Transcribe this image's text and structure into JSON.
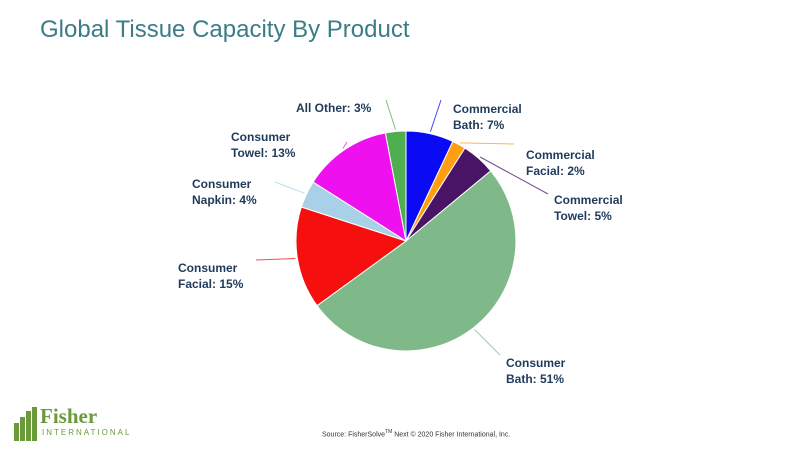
{
  "page": {
    "title": "Global Tissue Capacity By Product",
    "source_prefix": "Source: FisherSolve",
    "source_tm": "TM",
    "source_suffix": " Next © 2020 Fisher International, Inc.",
    "logo": {
      "word": "Fisher",
      "sub": "INTERNATIONAL"
    }
  },
  "chart_data": {
    "type": "pie",
    "title": "Global Tissue Capacity By Product",
    "start": "12 o'clock",
    "direction": "clockwise",
    "slices": [
      {
        "category": "Commercial Bath",
        "value": 7,
        "color": "#0a0af5",
        "label_lines": [
          "Commercial",
          "Bath: 7%"
        ]
      },
      {
        "category": "Commercial Facial",
        "value": 2,
        "color": "#ff9e10",
        "label_lines": [
          "Commercial",
          "Facial: 2%"
        ]
      },
      {
        "category": "Commercial Towel",
        "value": 5,
        "color": "#4a1466",
        "label_lines": [
          "Commercial",
          "Towel: 5%"
        ]
      },
      {
        "category": "Consumer Bath",
        "value": 51,
        "color": "#7fb98a",
        "label_lines": [
          "Consumer",
          "Bath: 51%"
        ]
      },
      {
        "category": "Consumer Facial",
        "value": 15,
        "color": "#f50f0f",
        "label_lines": [
          "Consumer",
          "Facial: 15%"
        ]
      },
      {
        "category": "Consumer Napkin",
        "value": 4,
        "color": "#a8d0e6",
        "label_lines": [
          "Consumer",
          "Napkin: 4%"
        ]
      },
      {
        "category": "Consumer Towel",
        "value": 13,
        "color": "#ee10ee",
        "label_lines": [
          "Consumer",
          "Towel: 13%"
        ]
      },
      {
        "category": "All Other",
        "value": 3,
        "color": "#4fae4f",
        "label_lines": [
          "All Other: 3%"
        ]
      }
    ]
  }
}
